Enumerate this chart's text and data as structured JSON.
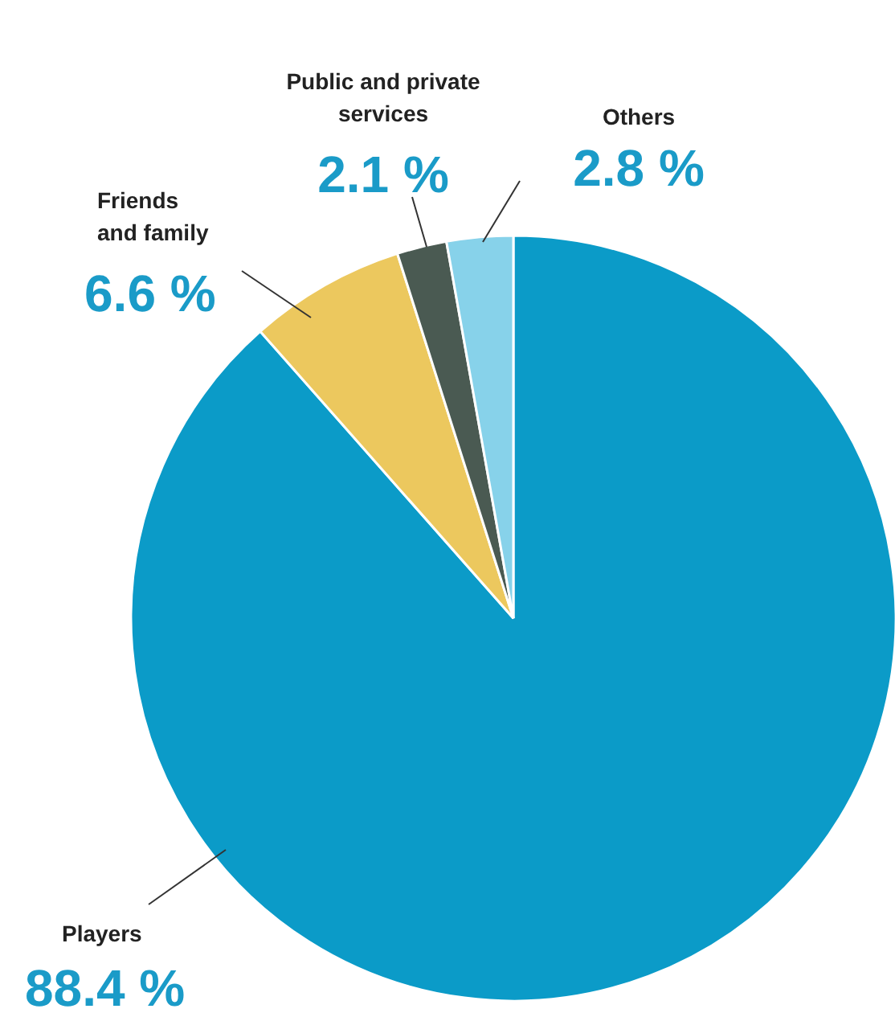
{
  "chart_data": {
    "type": "pie",
    "categories": [
      "Players",
      "Friends and family",
      "Public and private services",
      "Others"
    ],
    "values": [
      88.4,
      6.6,
      2.1,
      2.8
    ],
    "colors": [
      "#0b9bc8",
      "#ecc85e",
      "#4a5a52",
      "#87d2ea"
    ],
    "value_labels": [
      "88.4 %",
      "6.6 %",
      "2.1 %",
      "2.8 %"
    ]
  }
}
